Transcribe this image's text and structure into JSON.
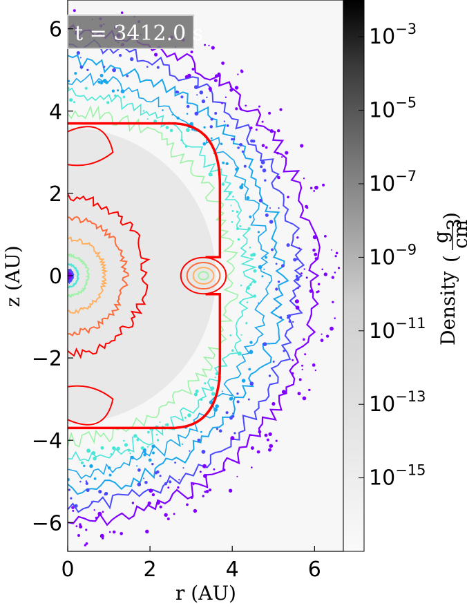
{
  "chart_data": {
    "type": "heatmap",
    "title": "",
    "annotation": "t = 3412.0 s",
    "xlabel": "r  (AU)",
    "ylabel": "z  (AU)",
    "xlim": [
      0,
      6.7
    ],
    "ylim": [
      -6.7,
      6.7
    ],
    "x_ticks": [
      0,
      2,
      4,
      6
    ],
    "y_ticks": [
      6,
      4,
      2,
      0,
      -2,
      -4,
      -6
    ],
    "grid": false,
    "colorbar": {
      "label_text": "Density",
      "unit_numerator": "g",
      "unit_denominator": "cm",
      "unit_exponent": "3",
      "scale": "log",
      "range_exponent": [
        -17,
        -2
      ],
      "tick_exponents": [
        -3,
        -5,
        -7,
        -9,
        -11,
        -13,
        -15
      ],
      "colormap": "greys"
    },
    "contour_colors": [
      "#8000ff",
      "#4a4afc",
      "#1aa6ec",
      "#4ae6d8",
      "#9cf2a6",
      "#ffb060",
      "#ff6a3a",
      "#ff0000"
    ],
    "features": {
      "shock_front_radius_au": 3.7,
      "outer_shell_radius_au": 6.0,
      "central_blob_au": [
        3.3,
        0.0
      ]
    }
  }
}
